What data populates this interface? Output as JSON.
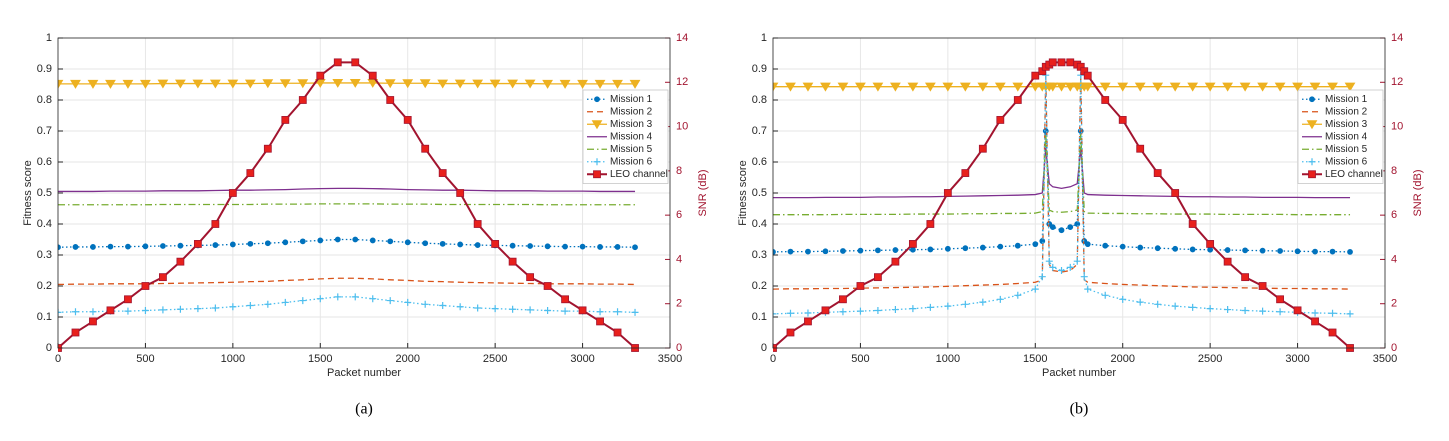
{
  "chart_data": [
    {
      "type": "line",
      "caption": "(a)",
      "xlabel": "Packet number",
      "ylabel": "Fitness score",
      "y2label": "SNR (dB)",
      "y2color": "#A2142F",
      "xlim": [
        0,
        3500
      ],
      "xticks": [
        0,
        500,
        1000,
        1500,
        2000,
        2500,
        3000,
        3500
      ],
      "ylim": [
        0,
        1
      ],
      "yticks": [
        0,
        0.1,
        0.2,
        0.3,
        0.4,
        0.5,
        0.6,
        0.7,
        0.8,
        0.9,
        1
      ],
      "y2lim": [
        0,
        14
      ],
      "y2ticks": [
        0,
        2,
        4,
        6,
        8,
        10,
        12,
        14
      ],
      "grid": true,
      "legend": "upper right",
      "x": [
        0,
        100,
        200,
        300,
        400,
        500,
        600,
        700,
        800,
        900,
        1000,
        1100,
        1200,
        1300,
        1400,
        1500,
        1600,
        1700,
        1800,
        1900,
        2000,
        2100,
        2200,
        2300,
        2400,
        2500,
        2600,
        2700,
        2800,
        2900,
        3000,
        3100,
        3200,
        3300
      ],
      "series": [
        {
          "name": "Mission 1",
          "color": "#0072BD",
          "linestyle": ":",
          "marker": "circle",
          "values": [
            0.325,
            0.326,
            0.326,
            0.327,
            0.327,
            0.328,
            0.329,
            0.33,
            0.331,
            0.332,
            0.334,
            0.336,
            0.338,
            0.341,
            0.344,
            0.347,
            0.35,
            0.35,
            0.347,
            0.344,
            0.341,
            0.338,
            0.336,
            0.334,
            0.332,
            0.331,
            0.33,
            0.329,
            0.328,
            0.327,
            0.327,
            0.326,
            0.326,
            0.325
          ]
        },
        {
          "name": "Mission 2",
          "color": "#D95319",
          "linestyle": "--",
          "values": [
            0.205,
            0.206,
            0.206,
            0.207,
            0.207,
            0.207,
            0.208,
            0.209,
            0.21,
            0.211,
            0.212,
            0.214,
            0.215,
            0.218,
            0.22,
            0.223,
            0.225,
            0.225,
            0.223,
            0.22,
            0.218,
            0.215,
            0.214,
            0.212,
            0.211,
            0.21,
            0.209,
            0.208,
            0.207,
            0.207,
            0.207,
            0.206,
            0.206,
            0.205
          ]
        },
        {
          "name": "Mission 3",
          "color": "#EDB120",
          "linestyle": "-",
          "marker": "triangle-down",
          "values": [
            0.852,
            0.852,
            0.852,
            0.852,
            0.852,
            0.852,
            0.853,
            0.853,
            0.853,
            0.853,
            0.853,
            0.853,
            0.854,
            0.854,
            0.854,
            0.855,
            0.855,
            0.855,
            0.855,
            0.854,
            0.854,
            0.854,
            0.853,
            0.853,
            0.853,
            0.853,
            0.853,
            0.853,
            0.852,
            0.852,
            0.852,
            0.852,
            0.852,
            0.852
          ]
        },
        {
          "name": "Mission 4",
          "color": "#7E2F8E",
          "linestyle": "-",
          "values": [
            0.505,
            0.505,
            0.505,
            0.506,
            0.506,
            0.506,
            0.507,
            0.507,
            0.507,
            0.508,
            0.509,
            0.509,
            0.51,
            0.511,
            0.513,
            0.514,
            0.515,
            0.515,
            0.514,
            0.513,
            0.511,
            0.51,
            0.509,
            0.509,
            0.508,
            0.507,
            0.507,
            0.507,
            0.506,
            0.506,
            0.506,
            0.505,
            0.505,
            0.505
          ]
        },
        {
          "name": "Mission 5",
          "color": "#77AC30",
          "linestyle": "-.",
          "values": [
            0.462,
            0.462,
            0.462,
            0.462,
            0.462,
            0.462,
            0.463,
            0.463,
            0.463,
            0.463,
            0.463,
            0.463,
            0.464,
            0.464,
            0.464,
            0.465,
            0.465,
            0.465,
            0.465,
            0.464,
            0.464,
            0.464,
            0.463,
            0.463,
            0.463,
            0.463,
            0.463,
            0.463,
            0.462,
            0.462,
            0.462,
            0.462,
            0.462,
            0.462
          ]
        },
        {
          "name": "Mission 6",
          "color": "#4DBEEE",
          "linestyle": ":",
          "marker": "plus",
          "values": [
            0.115,
            0.117,
            0.117,
            0.119,
            0.119,
            0.121,
            0.123,
            0.125,
            0.127,
            0.129,
            0.133,
            0.137,
            0.141,
            0.147,
            0.153,
            0.159,
            0.165,
            0.165,
            0.159,
            0.153,
            0.147,
            0.141,
            0.137,
            0.133,
            0.129,
            0.127,
            0.125,
            0.123,
            0.121,
            0.119,
            0.119,
            0.117,
            0.117,
            0.115
          ]
        },
        {
          "name": "LEO channel",
          "color": "#A2142F",
          "linestyle": "-",
          "marker": "square",
          "marker_face": "#E8201C",
          "axis": "y2",
          "values": [
            0,
            0.7,
            1.2,
            1.7,
            2.2,
            2.8,
            3.2,
            3.9,
            4.7,
            5.6,
            7.0,
            7.9,
            9.0,
            10.3,
            11.2,
            12.3,
            12.9,
            12.9,
            12.3,
            11.2,
            10.3,
            9.0,
            7.9,
            7.0,
            5.6,
            4.7,
            3.9,
            3.2,
            2.8,
            2.2,
            1.7,
            1.2,
            0.7,
            0
          ]
        }
      ]
    },
    {
      "type": "line",
      "caption": "(b)",
      "xlabel": "Packet number",
      "ylabel": "Fitness score",
      "y2label": "SNR (dB)",
      "y2color": "#A2142F",
      "xlim": [
        0,
        3500
      ],
      "xticks": [
        0,
        500,
        1000,
        1500,
        2000,
        2500,
        3000,
        3500
      ],
      "ylim": [
        0,
        1
      ],
      "yticks": [
        0,
        0.1,
        0.2,
        0.3,
        0.4,
        0.5,
        0.6,
        0.7,
        0.8,
        0.9,
        1
      ],
      "y2lim": [
        0,
        14
      ],
      "y2ticks": [
        0,
        2,
        4,
        6,
        8,
        10,
        12,
        14
      ],
      "grid": true,
      "legend": "upper right",
      "x": [
        0,
        100,
        200,
        300,
        400,
        500,
        600,
        700,
        800,
        900,
        1000,
        1100,
        1200,
        1300,
        1400,
        1500,
        1540,
        1560,
        1580,
        1600,
        1650,
        1700,
        1740,
        1760,
        1780,
        1800,
        1900,
        2000,
        2100,
        2200,
        2300,
        2400,
        2500,
        2600,
        2700,
        2800,
        2900,
        3000,
        3100,
        3200,
        3300
      ],
      "series": [
        {
          "name": "Mission 1",
          "color": "#0072BD",
          "linestyle": ":",
          "marker": "circle",
          "values": [
            0.31,
            0.311,
            0.311,
            0.312,
            0.313,
            0.314,
            0.315,
            0.316,
            0.317,
            0.318,
            0.32,
            0.322,
            0.324,
            0.327,
            0.33,
            0.335,
            0.345,
            0.7,
            0.4,
            0.39,
            0.38,
            0.39,
            0.4,
            0.7,
            0.345,
            0.335,
            0.33,
            0.327,
            0.324,
            0.322,
            0.32,
            0.318,
            0.317,
            0.316,
            0.315,
            0.314,
            0.313,
            0.312,
            0.311,
            0.311,
            0.31
          ]
        },
        {
          "name": "Mission 2",
          "color": "#D95319",
          "linestyle": "--",
          "values": [
            0.19,
            0.191,
            0.191,
            0.192,
            0.192,
            0.193,
            0.194,
            0.195,
            0.196,
            0.197,
            0.199,
            0.201,
            0.203,
            0.205,
            0.208,
            0.212,
            0.22,
            0.88,
            0.27,
            0.25,
            0.245,
            0.25,
            0.27,
            0.88,
            0.22,
            0.212,
            0.208,
            0.205,
            0.203,
            0.201,
            0.199,
            0.197,
            0.196,
            0.195,
            0.194,
            0.193,
            0.192,
            0.192,
            0.191,
            0.191,
            0.19
          ]
        },
        {
          "name": "Mission 3",
          "color": "#EDB120",
          "linestyle": "-",
          "marker": "triangle-down",
          "values": [
            0.843,
            0.843,
            0.843,
            0.843,
            0.843,
            0.843,
            0.843,
            0.843,
            0.843,
            0.843,
            0.843,
            0.843,
            0.843,
            0.843,
            0.843,
            0.843,
            0.843,
            0.843,
            0.843,
            0.843,
            0.843,
            0.843,
            0.843,
            0.843,
            0.843,
            0.843,
            0.843,
            0.843,
            0.843,
            0.843,
            0.843,
            0.843,
            0.843,
            0.843,
            0.843,
            0.843,
            0.843,
            0.843,
            0.843,
            0.843,
            0.843
          ]
        },
        {
          "name": "Mission 4",
          "color": "#7E2F8E",
          "linestyle": "-",
          "values": [
            0.485,
            0.485,
            0.485,
            0.486,
            0.486,
            0.486,
            0.487,
            0.487,
            0.488,
            0.488,
            0.489,
            0.49,
            0.491,
            0.492,
            0.493,
            0.495,
            0.5,
            0.645,
            0.53,
            0.52,
            0.515,
            0.52,
            0.53,
            0.645,
            0.5,
            0.495,
            0.493,
            0.492,
            0.491,
            0.49,
            0.489,
            0.488,
            0.488,
            0.487,
            0.487,
            0.486,
            0.486,
            0.486,
            0.485,
            0.485,
            0.485
          ]
        },
        {
          "name": "Mission 5",
          "color": "#77AC30",
          "linestyle": "-.",
          "values": [
            0.43,
            0.43,
            0.43,
            0.43,
            0.431,
            0.431,
            0.431,
            0.431,
            0.432,
            0.432,
            0.432,
            0.433,
            0.433,
            0.434,
            0.434,
            0.435,
            0.44,
            0.69,
            0.445,
            0.44,
            0.438,
            0.44,
            0.445,
            0.69,
            0.44,
            0.435,
            0.434,
            0.434,
            0.433,
            0.433,
            0.432,
            0.432,
            0.432,
            0.431,
            0.431,
            0.431,
            0.431,
            0.43,
            0.43,
            0.43,
            0.43
          ]
        },
        {
          "name": "Mission 6",
          "color": "#4DBEEE",
          "linestyle": ":",
          "marker": "plus",
          "values": [
            0.11,
            0.112,
            0.113,
            0.115,
            0.117,
            0.119,
            0.121,
            0.124,
            0.127,
            0.131,
            0.135,
            0.141,
            0.148,
            0.157,
            0.17,
            0.19,
            0.23,
            0.88,
            0.28,
            0.26,
            0.25,
            0.26,
            0.28,
            0.88,
            0.23,
            0.19,
            0.17,
            0.157,
            0.148,
            0.141,
            0.135,
            0.131,
            0.127,
            0.124,
            0.121,
            0.119,
            0.117,
            0.115,
            0.113,
            0.112,
            0.11
          ]
        },
        {
          "name": "LEO channel",
          "color": "#A2142F",
          "linestyle": "-",
          "marker": "square",
          "marker_face": "#E8201C",
          "axis": "y2",
          "values": [
            0,
            0.7,
            1.2,
            1.7,
            2.2,
            2.8,
            3.2,
            3.9,
            4.7,
            5.6,
            7.0,
            7.9,
            9.0,
            10.3,
            11.2,
            12.3,
            12.5,
            12.7,
            12.8,
            12.9,
            12.9,
            12.9,
            12.8,
            12.7,
            12.5,
            12.3,
            11.2,
            10.3,
            9.0,
            7.9,
            7.0,
            5.6,
            4.7,
            3.9,
            3.2,
            2.8,
            2.2,
            1.7,
            1.2,
            0.7,
            0
          ]
        }
      ]
    }
  ]
}
